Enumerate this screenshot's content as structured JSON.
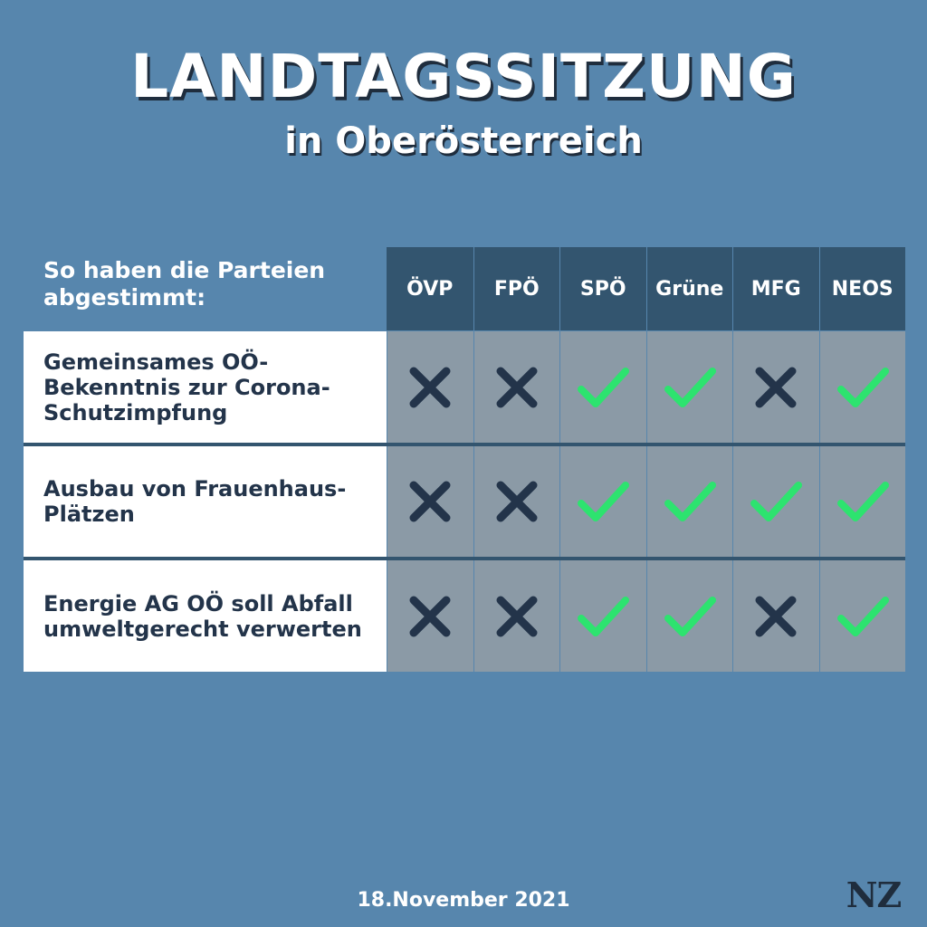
{
  "title": "LANDTAGSSITZUNG",
  "subtitle": "in Oberösterreich",
  "table": {
    "intro": "So haben die Parteien abgestimmt:",
    "parties": [
      "ÖVP",
      "FPÖ",
      "SPÖ",
      "Grüne",
      "MFG",
      "NEOS"
    ],
    "rows": [
      {
        "label": "Gemeinsames OÖ-Bekenntnis zur Corona-Schutzimpfung",
        "votes": [
          "no",
          "no",
          "yes",
          "yes",
          "no",
          "yes"
        ]
      },
      {
        "label": "Ausbau von Frauenhaus-Plätzen",
        "votes": [
          "no",
          "no",
          "yes",
          "yes",
          "yes",
          "yes"
        ]
      },
      {
        "label": "Energie AG OÖ soll Abfall umweltgerecht verwerten",
        "votes": [
          "no",
          "no",
          "yes",
          "yes",
          "no",
          "yes"
        ]
      }
    ]
  },
  "date": "18.November 2021",
  "logo": "NZ",
  "colors": {
    "background": "#5786ad",
    "header": "#33556f",
    "cell": "#8b9aa6",
    "yes": "#2de36f",
    "no": "#23344a"
  },
  "icons": {
    "yes": "check-icon",
    "no": "cross-icon"
  }
}
